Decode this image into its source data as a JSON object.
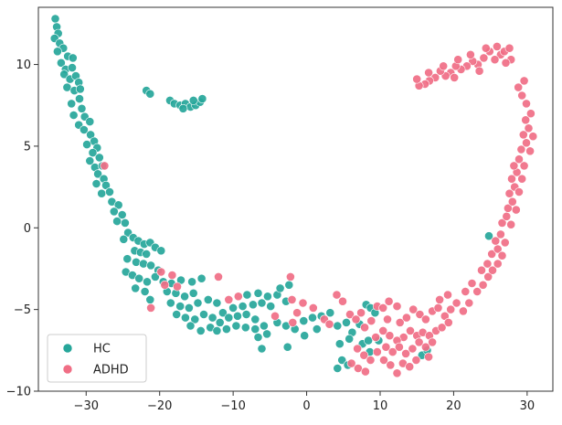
{
  "chart_data": {
    "type": "scatter",
    "title": "",
    "xlabel": "",
    "ylabel": "",
    "xlim": [
      -36.5,
      33.5
    ],
    "ylim": [
      -10,
      13.5
    ],
    "xticks": [
      -30,
      -20,
      -10,
      0,
      10,
      20,
      30
    ],
    "yticks": [
      -10,
      -5,
      0,
      5,
      10
    ],
    "grid": false,
    "legend_position": "lower-left",
    "series": [
      {
        "name": "HC",
        "color": "#26a69a",
        "points": [
          [
            -34.2,
            12.8
          ],
          [
            -34.0,
            12.3
          ],
          [
            -33.8,
            11.9
          ],
          [
            -34.3,
            11.6
          ],
          [
            -33.6,
            11.3
          ],
          [
            -33.1,
            11.0
          ],
          [
            -33.9,
            10.8
          ],
          [
            -32.5,
            10.5
          ],
          [
            -31.8,
            10.4
          ],
          [
            -33.4,
            10.1
          ],
          [
            -32.8,
            9.7
          ],
          [
            -31.9,
            9.8
          ],
          [
            -33.0,
            9.4
          ],
          [
            -32.2,
            9.1
          ],
          [
            -31.4,
            9.3
          ],
          [
            -31.0,
            8.9
          ],
          [
            -32.6,
            8.6
          ],
          [
            -31.6,
            8.4
          ],
          [
            -30.8,
            8.5
          ],
          [
            -30.9,
            7.9
          ],
          [
            -32.0,
            7.6
          ],
          [
            -30.6,
            7.3
          ],
          [
            -31.7,
            6.9
          ],
          [
            -30.2,
            6.8
          ],
          [
            -29.5,
            6.5
          ],
          [
            -31.0,
            6.3
          ],
          [
            -30.3,
            6.0
          ],
          [
            -29.4,
            5.7
          ],
          [
            -28.9,
            5.3
          ],
          [
            -29.9,
            5.1
          ],
          [
            -28.5,
            4.9
          ],
          [
            -29.1,
            4.6
          ],
          [
            -28.2,
            4.3
          ],
          [
            -29.5,
            4.1
          ],
          [
            -28.8,
            3.7
          ],
          [
            -27.8,
            3.8
          ],
          [
            -28.4,
            3.3
          ],
          [
            -27.6,
            3.0
          ],
          [
            -28.6,
            2.7
          ],
          [
            -27.3,
            2.6
          ],
          [
            -27.9,
            2.1
          ],
          [
            -26.8,
            2.2
          ],
          [
            -26.5,
            1.6
          ],
          [
            -25.6,
            1.4
          ],
          [
            -26.2,
            1.0
          ],
          [
            -25.1,
            0.8
          ],
          [
            -24.7,
            0.3
          ],
          [
            -25.8,
            0.4
          ],
          [
            -24.3,
            -0.3
          ],
          [
            -23.6,
            -0.6
          ],
          [
            -24.9,
            -0.7
          ],
          [
            -22.9,
            -0.8
          ],
          [
            -22.1,
            -1.0
          ],
          [
            -21.3,
            -0.9
          ],
          [
            -20.6,
            -1.2
          ],
          [
            -23.4,
            -1.4
          ],
          [
            -22.6,
            -1.5
          ],
          [
            -21.8,
            -1.6
          ],
          [
            -19.8,
            -1.4
          ],
          [
            -24.4,
            -1.9
          ],
          [
            -23.2,
            -2.1
          ],
          [
            -22.2,
            -2.2
          ],
          [
            -21.2,
            -2.3
          ],
          [
            -20.2,
            -2.6
          ],
          [
            -24.6,
            -2.7
          ],
          [
            -23.7,
            -2.9
          ],
          [
            -22.8,
            -3.1
          ],
          [
            -21.7,
            -3.3
          ],
          [
            -20.6,
            -3.0
          ],
          [
            -19.5,
            -3.3
          ],
          [
            -18.4,
            -3.4
          ],
          [
            -17.1,
            -3.2
          ],
          [
            -15.6,
            -3.3
          ],
          [
            -14.3,
            -3.1
          ],
          [
            -23.3,
            -3.7
          ],
          [
            -22.0,
            -3.9
          ],
          [
            -19.0,
            -3.9
          ],
          [
            -17.8,
            -4.0
          ],
          [
            -16.6,
            -4.2
          ],
          [
            -15.4,
            -4.0
          ],
          [
            -21.3,
            -4.4
          ],
          [
            -18.5,
            -4.6
          ],
          [
            -17.2,
            -4.8
          ],
          [
            -16.0,
            -4.9
          ],
          [
            -14.8,
            -4.6
          ],
          [
            -13.4,
            -4.4
          ],
          [
            -12.2,
            -4.6
          ],
          [
            -17.7,
            -5.3
          ],
          [
            -16.5,
            -5.5
          ],
          [
            -15.2,
            -5.6
          ],
          [
            -14.0,
            -5.3
          ],
          [
            -12.8,
            -5.5
          ],
          [
            -11.4,
            -5.2
          ],
          [
            -15.8,
            -6.0
          ],
          [
            -14.4,
            -6.3
          ],
          [
            -13.1,
            -6.1
          ],
          [
            -11.8,
            -5.8
          ],
          [
            -10.6,
            -5.5
          ],
          [
            -9.4,
            -5.4
          ],
          [
            -8.2,
            -5.3
          ],
          [
            -7.0,
            -5.6
          ],
          [
            -12.2,
            -6.3
          ],
          [
            -10.9,
            -6.2
          ],
          [
            -9.6,
            -6.0
          ],
          [
            -8.3,
            -6.1
          ],
          [
            -7.0,
            -6.2
          ],
          [
            -5.8,
            -6.0
          ],
          [
            -10.0,
            -4.9
          ],
          [
            -8.7,
            -4.8
          ],
          [
            -7.3,
            -4.7
          ],
          [
            -6.1,
            -4.6
          ],
          [
            -4.9,
            -4.8
          ],
          [
            -8.1,
            -4.1
          ],
          [
            -6.6,
            -4.0
          ],
          [
            -5.3,
            -4.2
          ],
          [
            -4.0,
            -4.1
          ],
          [
            -2.8,
            -4.5
          ],
          [
            -3.6,
            -3.7
          ],
          [
            -2.4,
            -3.5
          ],
          [
            -6.6,
            -6.7
          ],
          [
            -5.4,
            -6.5
          ],
          [
            -4.0,
            -5.8
          ],
          [
            -2.8,
            -6.0
          ],
          [
            -1.6,
            -6.2
          ],
          [
            -0.4,
            -5.7
          ],
          [
            0.8,
            -5.5
          ],
          [
            2.0,
            -5.4
          ],
          [
            1.4,
            -6.2
          ],
          [
            -6.1,
            -7.4
          ],
          [
            -2.6,
            -7.3
          ],
          [
            -0.3,
            -6.6
          ],
          [
            3.2,
            -5.2
          ],
          [
            4.2,
            -6.0
          ],
          [
            5.4,
            -5.8
          ],
          [
            6.2,
            -6.4
          ],
          [
            7.2,
            -5.9
          ],
          [
            8.1,
            -4.7
          ],
          [
            8.7,
            -4.9
          ],
          [
            9.3,
            -5.2
          ],
          [
            5.8,
            -6.8
          ],
          [
            4.5,
            -7.1
          ],
          [
            7.6,
            -7.1
          ],
          [
            8.4,
            -6.9
          ],
          [
            9.8,
            -6.9
          ],
          [
            4.8,
            -8.1
          ],
          [
            5.6,
            -8.4
          ],
          [
            4.2,
            -8.6
          ],
          [
            8.6,
            -7.6
          ],
          [
            15.7,
            -7.8
          ],
          [
            16.4,
            -7.5
          ],
          [
            24.8,
            -0.5
          ],
          [
            -21.8,
            8.4
          ],
          [
            -21.3,
            8.2
          ],
          [
            -18.6,
            7.8
          ],
          [
            -18.0,
            7.6
          ],
          [
            -17.2,
            7.5
          ],
          [
            -16.5,
            7.6
          ],
          [
            -15.8,
            7.4
          ],
          [
            -15.1,
            7.5
          ],
          [
            -14.5,
            7.7
          ],
          [
            -14.2,
            7.9
          ],
          [
            -15.4,
            7.8
          ],
          [
            -16.8,
            7.3
          ]
        ]
      },
      {
        "name": "ADHD",
        "color": "#f06e85",
        "points": [
          [
            -27.5,
            3.8
          ],
          [
            -19.8,
            -2.7
          ],
          [
            -19.3,
            -3.5
          ],
          [
            -18.3,
            -2.9
          ],
          [
            -17.6,
            -3.6
          ],
          [
            -12.0,
            -3.0
          ],
          [
            -21.2,
            -4.9
          ],
          [
            -10.6,
            -4.4
          ],
          [
            -9.3,
            -4.2
          ],
          [
            -2.2,
            -3.0
          ],
          [
            -4.3,
            -5.4
          ],
          [
            -2.0,
            -4.4
          ],
          [
            -1.3,
            -5.2
          ],
          [
            -0.5,
            -4.6
          ],
          [
            -1.9,
            -5.8
          ],
          [
            0.9,
            -4.9
          ],
          [
            4.1,
            -4.1
          ],
          [
            2.4,
            -5.6
          ],
          [
            3.1,
            -5.9
          ],
          [
            4.9,
            -4.5
          ],
          [
            5.9,
            -5.3
          ],
          [
            6.7,
            -5.6
          ],
          [
            7.4,
            -5.2
          ],
          [
            7.9,
            -6.1
          ],
          [
            8.8,
            -5.7
          ],
          [
            9.6,
            -4.8
          ],
          [
            10.4,
            -4.9
          ],
          [
            11.2,
            -4.5
          ],
          [
            12.3,
            -4.8
          ],
          [
            11.0,
            -5.6
          ],
          [
            12.7,
            -5.8
          ],
          [
            13.6,
            -5.5
          ],
          [
            14.5,
            -5.0
          ],
          [
            15.4,
            -5.3
          ],
          [
            16.2,
            -5.6
          ],
          [
            17.1,
            -5.1
          ],
          [
            17.9,
            -4.9
          ],
          [
            18.8,
            -5.4
          ],
          [
            19.6,
            -5.0
          ],
          [
            20.4,
            -4.6
          ],
          [
            19.2,
            -4.1
          ],
          [
            18.1,
            -4.4
          ],
          [
            14.1,
            -6.3
          ],
          [
            15.0,
            -6.6
          ],
          [
            15.8,
            -6.4
          ],
          [
            16.7,
            -6.6
          ],
          [
            17.6,
            -6.3
          ],
          [
            18.4,
            -6.1
          ],
          [
            19.3,
            -5.8
          ],
          [
            13.2,
            -6.7
          ],
          [
            12.3,
            -6.9
          ],
          [
            11.3,
            -6.6
          ],
          [
            10.4,
            -6.3
          ],
          [
            9.4,
            -6.7
          ],
          [
            10.8,
            -7.3
          ],
          [
            11.7,
            -7.6
          ],
          [
            12.6,
            -7.3
          ],
          [
            13.5,
            -7.7
          ],
          [
            14.4,
            -7.4
          ],
          [
            15.3,
            -7.0
          ],
          [
            16.2,
            -7.3
          ],
          [
            17.1,
            -7.0
          ],
          [
            6.9,
            -7.4
          ],
          [
            7.8,
            -7.8
          ],
          [
            8.7,
            -8.1
          ],
          [
            9.6,
            -7.6
          ],
          [
            10.5,
            -8.1
          ],
          [
            11.4,
            -8.4
          ],
          [
            12.3,
            -8.9
          ],
          [
            13.1,
            -8.3
          ],
          [
            14.0,
            -8.5
          ],
          [
            14.9,
            -8.1
          ],
          [
            6.1,
            -8.3
          ],
          [
            7.0,
            -8.6
          ],
          [
            8.0,
            -8.8
          ],
          [
            16.6,
            -7.9
          ],
          [
            21.3,
            -5.1
          ],
          [
            22.1,
            -4.6
          ],
          [
            21.6,
            -3.9
          ],
          [
            22.5,
            -3.4
          ],
          [
            23.2,
            -3.9
          ],
          [
            24.0,
            -3.5
          ],
          [
            24.7,
            -3.0
          ],
          [
            23.8,
            -2.6
          ],
          [
            24.6,
            -2.2
          ],
          [
            25.3,
            -2.6
          ],
          [
            26.0,
            -2.2
          ],
          [
            25.2,
            -1.6
          ],
          [
            26.0,
            -1.3
          ],
          [
            26.6,
            -1.7
          ],
          [
            25.7,
            -0.8
          ],
          [
            26.4,
            -0.4
          ],
          [
            27.0,
            -0.9
          ],
          [
            26.6,
            0.3
          ],
          [
            27.2,
            0.7
          ],
          [
            27.8,
            0.2
          ],
          [
            27.4,
            1.2
          ],
          [
            28.0,
            1.6
          ],
          [
            28.5,
            1.1
          ],
          [
            27.6,
            2.1
          ],
          [
            28.3,
            2.5
          ],
          [
            28.9,
            2.2
          ],
          [
            27.9,
            3.0
          ],
          [
            28.6,
            3.4
          ],
          [
            29.3,
            3.0
          ],
          [
            28.2,
            3.8
          ],
          [
            28.9,
            4.2
          ],
          [
            29.6,
            3.8
          ],
          [
            29.2,
            4.8
          ],
          [
            29.9,
            5.2
          ],
          [
            30.4,
            4.7
          ],
          [
            29.5,
            5.7
          ],
          [
            30.2,
            6.1
          ],
          [
            30.8,
            5.6
          ],
          [
            29.8,
            6.6
          ],
          [
            30.5,
            7.0
          ],
          [
            29.9,
            7.6
          ],
          [
            29.3,
            8.1
          ],
          [
            28.8,
            8.6
          ],
          [
            29.6,
            9.0
          ],
          [
            27.8,
            10.3
          ],
          [
            27.1,
            10.1
          ],
          [
            26.4,
            10.6
          ],
          [
            25.6,
            10.3
          ],
          [
            24.9,
            10.8
          ],
          [
            24.1,
            10.4
          ],
          [
            23.3,
            10.0
          ],
          [
            22.6,
            10.2
          ],
          [
            21.8,
            9.9
          ],
          [
            21.0,
            9.7
          ],
          [
            20.3,
            9.9
          ],
          [
            19.6,
            9.5
          ],
          [
            18.9,
            9.3
          ],
          [
            18.2,
            9.6
          ],
          [
            17.5,
            9.2
          ],
          [
            16.7,
            9.0
          ],
          [
            16.1,
            8.8
          ],
          [
            15.3,
            8.7
          ],
          [
            15.0,
            9.1
          ],
          [
            16.6,
            9.5
          ],
          [
            18.6,
            9.9
          ],
          [
            20.6,
            10.3
          ],
          [
            22.3,
            10.6
          ],
          [
            24.4,
            11.0
          ],
          [
            25.9,
            11.1
          ],
          [
            26.9,
            10.8
          ],
          [
            27.6,
            11.0
          ],
          [
            23.5,
            9.6
          ],
          [
            20.1,
            9.2
          ]
        ]
      }
    ]
  },
  "legend": {
    "items": [
      {
        "label": "HC",
        "color": "#26a69a"
      },
      {
        "label": "ADHD",
        "color": "#f06e85"
      }
    ]
  }
}
